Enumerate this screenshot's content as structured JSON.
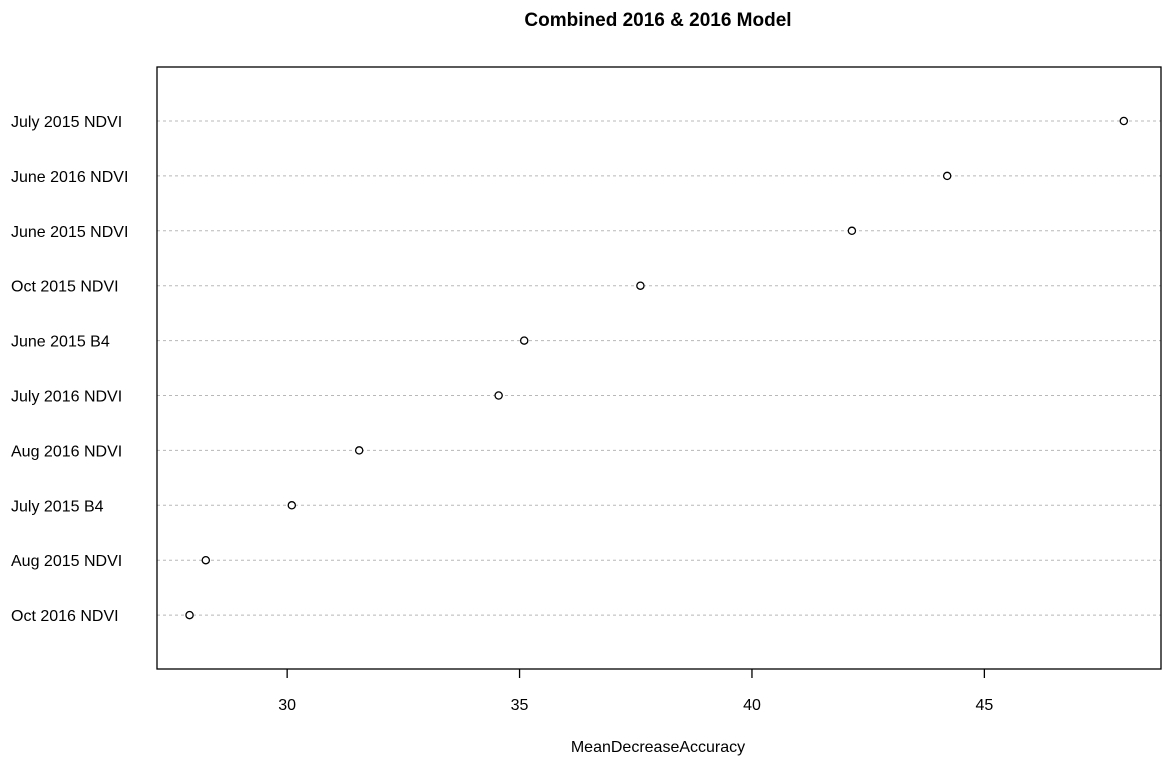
{
  "chart_data": {
    "type": "scatter",
    "title": "Combined 2016 & 2016 Model",
    "xlabel": "MeanDecreaseAccuracy",
    "ylabel": "",
    "xlim": [
      27.2,
      48.8
    ],
    "xticks": [
      30,
      35,
      40,
      45
    ],
    "grid": "horizontal dotted lines per category",
    "categories": [
      "July 2015 NDVI",
      "June 2016 NDVI",
      "June 2015 NDVI",
      "Oct 2015 NDVI",
      "June 2015 B4",
      "July 2016 NDVI",
      "Aug 2016 NDVI",
      "July 2015 B4",
      "Aug 2015 NDVI",
      "Oct 2016 NDVI"
    ],
    "values": [
      48.0,
      44.2,
      42.15,
      37.6,
      35.1,
      34.55,
      31.55,
      30.1,
      28.25,
      27.9
    ]
  }
}
